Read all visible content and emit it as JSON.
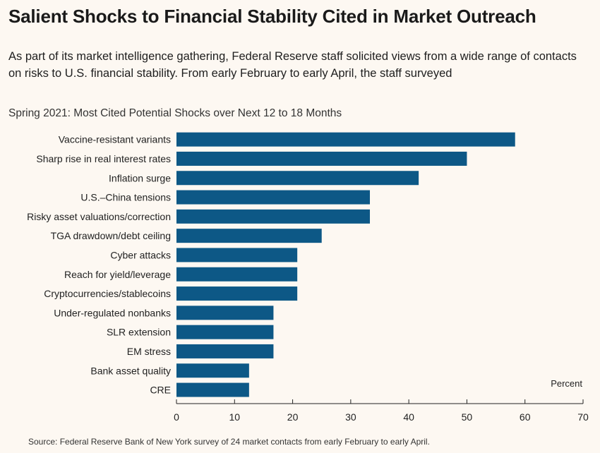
{
  "title": "Salient Shocks to Financial Stability Cited in Market Outreach",
  "intro": "As part of its market intelligence gathering, Federal Reserve staff solicited views from a wide range of contacts on risks to U.S. financial stability. From early February to early April, the staff surveyed",
  "source": "Source: Federal Reserve Bank of New York survey of 24 market contacts from early February to early April.",
  "bar_color": "#0d5886",
  "chart_data": {
    "type": "bar",
    "orientation": "horizontal",
    "title": "Spring 2021: Most Cited Potential Shocks over Next 12 to 18 Months",
    "unit_label": "Percent",
    "xlim": [
      0,
      70
    ],
    "xticks": [
      "0",
      "10",
      "20",
      "30",
      "40",
      "50",
      "60",
      "70"
    ],
    "categories": [
      "Vaccine-resistant variants",
      "Sharp rise in real interest rates",
      "Inflation surge",
      "U.S.–China tensions",
      "Risky asset valuations/correction",
      "TGA drawdown/debt ceiling",
      "Cyber attacks",
      "Reach for yield/leverage",
      "Cryptocurrencies/stablecoins",
      "Under-regulated nonbanks",
      "SLR extension",
      "EM stress",
      "Bank asset quality",
      "CRE"
    ],
    "values": [
      58.3,
      50.0,
      41.7,
      33.3,
      33.3,
      25.0,
      20.8,
      20.8,
      20.8,
      16.7,
      16.7,
      16.7,
      12.5,
      12.5
    ]
  }
}
